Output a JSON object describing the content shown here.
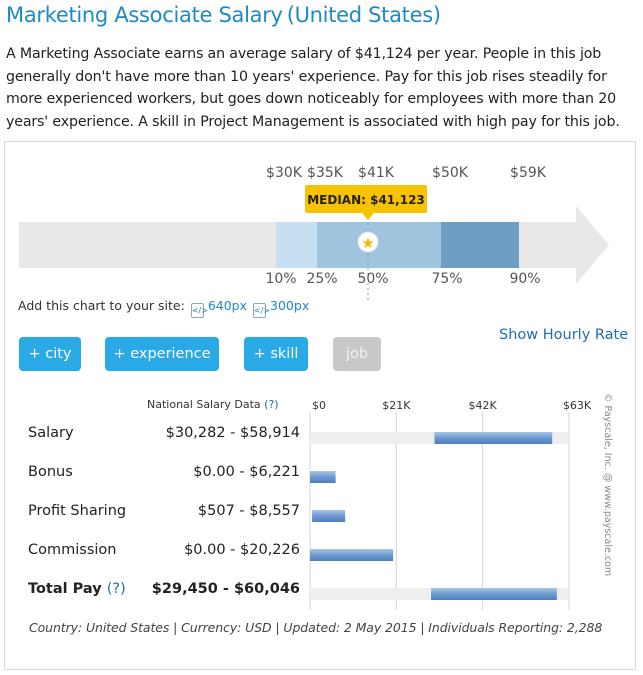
{
  "header": {
    "title": "Marketing Associate Salary",
    "country": "(United States)"
  },
  "description": "A Marketing Associate earns an average salary of $41,124 per year. People in this job generally don't have more than 10 years' experience. Pay for this job rises steadily for more experienced workers, but goes down noticeably for employees with more than 20 years' experience. A skill in Project Management is associated with high pay for this job.",
  "embed": {
    "label": "Add this chart to your site:",
    "link_640": "640px",
    "link_300": "300px"
  },
  "buttons": {
    "city": "+ city",
    "experience": "+ experience",
    "skill": "+ skill",
    "job": "job"
  },
  "hourly_link": "Show Hourly Rate",
  "national_label": "National Salary Data",
  "help_mark": "(?)",
  "rows": [
    {
      "label": "Salary",
      "range": "$30,282 - $58,914"
    },
    {
      "label": "Bonus",
      "range": "$0.00 - $6,221"
    },
    {
      "label": "Profit Sharing",
      "range": "$507 - $8,557"
    },
    {
      "label": "Commission",
      "range": "$0.00 - $20,226"
    },
    {
      "label": "Total Pay",
      "range": "$29,450 - $60,046"
    }
  ],
  "footer": "Country: United States | Currency: USD | Updated: 2 May 2015 | Individuals Reporting: 2,288",
  "credit": "© Payscale, Inc. @ www.payscale.com",
  "colors": {
    "accent": "#29a9e6",
    "link": "#1d8ac6",
    "median_badge": "#f7c300",
    "band_light": "#c7dff0",
    "band_mid": "#9ec4de",
    "band_dark": "#6f9dc4"
  },
  "chart_data": [
    {
      "type": "bar",
      "chart": "salary-percentile-range",
      "top_labels": [
        "$30K",
        "$35K",
        "$41K",
        "$50K",
        "$59K"
      ],
      "top_values": [
        30000,
        35000,
        41000,
        50000,
        59000
      ],
      "percentiles": [
        "10%",
        "25%",
        "50%",
        "75%",
        "90%"
      ],
      "median_label": "MEDIAN: $41,123",
      "median": 41123
    },
    {
      "type": "bar",
      "chart": "national-salary-data",
      "x_ticks": [
        "$0",
        "$21K",
        "$42K",
        "$63K"
      ],
      "x_tick_values": [
        0,
        21000,
        42000,
        63000
      ],
      "xlim": [
        0,
        63000
      ],
      "categories": [
        "Salary",
        "Bonus",
        "Profit Sharing",
        "Commission",
        "Total Pay"
      ],
      "ranges": [
        [
          30282,
          58914
        ],
        [
          0,
          6221
        ],
        [
          507,
          8557
        ],
        [
          0,
          20226
        ],
        [
          29450,
          60046
        ]
      ],
      "background_extent": [
        63000,
        null,
        null,
        null,
        63000
      ]
    }
  ]
}
